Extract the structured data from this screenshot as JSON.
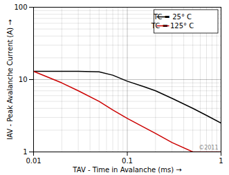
{
  "chart_data": {
    "type": "line",
    "xlabel": "TAV - Time in Avalanche (ms)",
    "ylabel": "IAV - Peak Avalanche Current (A)",
    "x": [
      0.01,
      0.02,
      0.03,
      0.05,
      0.07,
      0.1,
      0.15,
      0.2,
      0.3,
      0.5,
      0.7,
      1.0
    ],
    "series": [
      {
        "name": "TC = 25° C",
        "color": "#000000",
        "values": [
          13.0,
          13.0,
          13.0,
          12.8,
          11.5,
          9.5,
          8.0,
          7.0,
          5.5,
          4.0,
          3.2,
          2.5
        ]
      },
      {
        "name": "TC = 125° C",
        "color": "#cc0000",
        "values": [
          13.0,
          9.0,
          7.0,
          5.0,
          3.8,
          2.9,
          2.2,
          1.8,
          1.35,
          1.0,
          1.0,
          1.0
        ]
      }
    ],
    "xlim": [
      0.01,
      1.0
    ],
    "ylim": [
      1,
      100
    ],
    "xticks": [
      0.01,
      0.1,
      1.0
    ],
    "yticks": [
      1,
      10,
      100
    ],
    "log": true,
    "grid": true,
    "legend": "upper right",
    "annotations": [
      "©2011"
    ]
  }
}
